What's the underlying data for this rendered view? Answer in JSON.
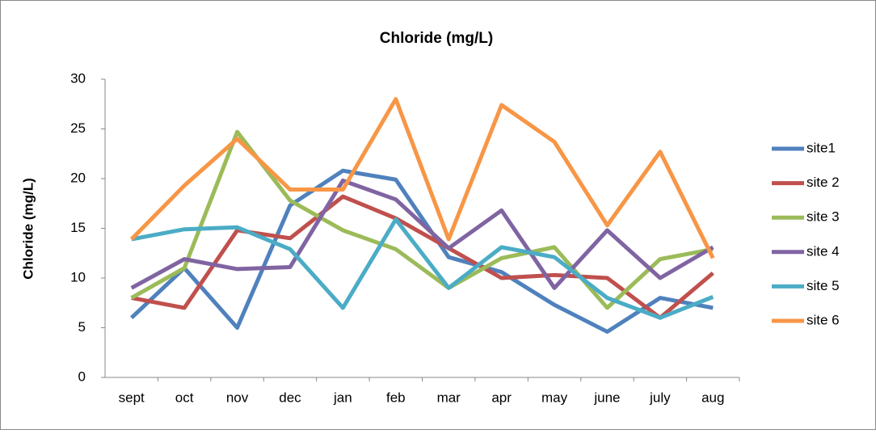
{
  "chart_data": {
    "type": "line",
    "title": "Chloride (mg/L)",
    "y_label": "Chloride (mg/L)",
    "categories": [
      "sept",
      "oct",
      "nov",
      "dec",
      "jan",
      "feb",
      "mar",
      "apr",
      "may",
      "june",
      "july",
      "aug"
    ],
    "series": [
      {
        "name": "site1",
        "color": "#4f81bd",
        "values": [
          6,
          11,
          5,
          17.3,
          20.8,
          19.9,
          12.1,
          10.6,
          7.3,
          4.6,
          8,
          7
        ]
      },
      {
        "name": "site 2",
        "color": "#c0504d",
        "values": [
          8,
          7,
          14.8,
          14,
          18.2,
          16,
          13,
          10,
          10.3,
          10,
          6,
          10.5
        ]
      },
      {
        "name": "site 3",
        "color": "#9bbb59",
        "values": [
          8,
          11,
          24.7,
          17.8,
          14.8,
          12.9,
          9,
          12,
          13.1,
          7,
          11.9,
          12.9
        ]
      },
      {
        "name": "site 4",
        "color": "#8064a2",
        "values": [
          9,
          11.9,
          10.9,
          11.1,
          19.8,
          17.9,
          13,
          16.8,
          9,
          14.8,
          10,
          13.1
        ]
      },
      {
        "name": "site 5",
        "color": "#4bacc6",
        "values": [
          13.9,
          14.9,
          15.1,
          12.9,
          7,
          15.9,
          9,
          13.1,
          12.1,
          8,
          6,
          8.1
        ]
      },
      {
        "name": "site 6",
        "color": "#f79646",
        "values": [
          13.9,
          19.3,
          24,
          18.9,
          18.9,
          28,
          13.9,
          27.4,
          23.7,
          15.3,
          22.7,
          12
        ]
      }
    ],
    "ylim": [
      0,
      30
    ],
    "yticks": [
      0,
      5,
      10,
      15,
      20,
      25,
      30
    ],
    "grid": false,
    "legend": "right"
  }
}
